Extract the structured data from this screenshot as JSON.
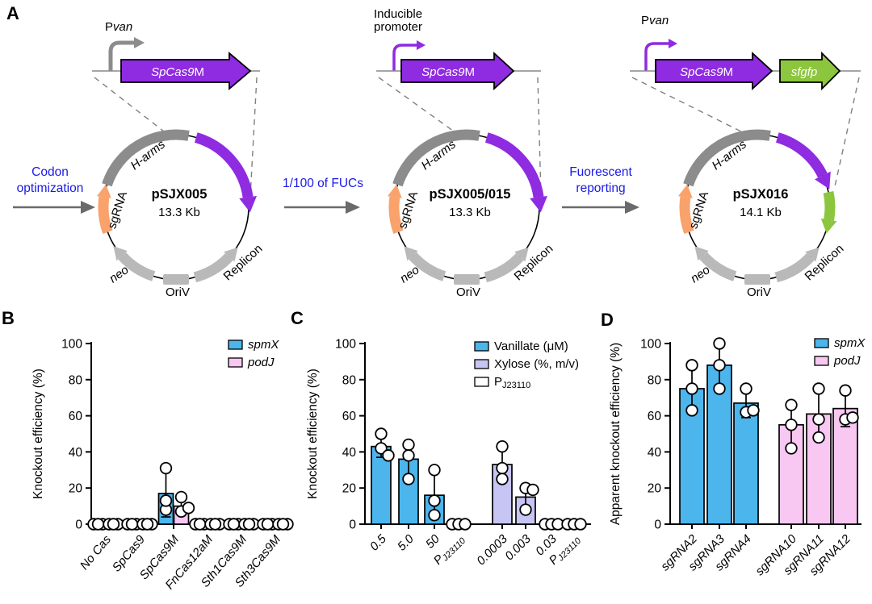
{
  "panel_labels": {
    "a": "A",
    "b": "B",
    "c": "C",
    "d": "D"
  },
  "panelA": {
    "flow_steps": [
      {
        "line1": "Codon",
        "line2": "optimization"
      },
      {
        "line1": "1/100 of FUCs",
        "line2": ""
      },
      {
        "line1": "Fuorescent",
        "line2": "reporting"
      }
    ],
    "shared": {
      "sgRNA": "sgRNA",
      "harms": "H-arms",
      "neo": "neo",
      "oriv": "OriV",
      "replicon": "Replicon"
    },
    "plasmids": [
      {
        "name": "pSJX005",
        "size": "13.3 Kb",
        "promoter_plain": "P",
        "promoter_italic": "van",
        "promoter_line1": "",
        "promoter_line2": "",
        "gene_italic": "SpCas9",
        "gene_plain": "M",
        "gene2": ""
      },
      {
        "name": "pSJX005/015",
        "size": "13.3 Kb",
        "promoter_plain": "",
        "promoter_italic": "",
        "promoter_line1": "Inducible",
        "promoter_line2": "promoter",
        "gene_italic": "SpCas9",
        "gene_plain": "M",
        "gene2": ""
      },
      {
        "name": "pSJX016",
        "size": "14.1 Kb",
        "promoter_plain": "P",
        "promoter_italic": "van",
        "promoter_line1": "",
        "promoter_line2": "",
        "gene_italic": "SpCas9",
        "gene_plain": "M",
        "gene2": "sfgfp"
      }
    ],
    "colors": {
      "purple": "#8f2be0",
      "green": "#8cc63e",
      "orange": "#f9a26b",
      "dark_gray": "#8c8c8c",
      "light_gray": "#b9b9b9",
      "flow_blue": "#1a1ae6"
    }
  },
  "chart_data": [
    {
      "panel": "B",
      "type": "bar",
      "title": "",
      "ylabel": "Knockout efficiency (%)",
      "ylim": [
        0,
        100
      ],
      "yticks": [
        0,
        20,
        40,
        60,
        80,
        100
      ],
      "legend": [
        {
          "label": "spmX",
          "italic": true,
          "color": "#4cb5ec"
        },
        {
          "label": "podJ",
          "italic": true,
          "color": "#f8c7f2"
        }
      ],
      "categories": [
        {
          "text": "No Cas",
          "italic": true
        },
        {
          "text": "SpCas9",
          "italic": true
        },
        {
          "text": "SpCas9M",
          "italic": true
        },
        {
          "text": "FnCas12aM",
          "italic": true
        },
        {
          "text": "Sth1Cas9M",
          "italic": true
        },
        {
          "text": "Sth3Cas9M",
          "italic": true
        }
      ],
      "groups": [
        [
          {
            "color": "#4cb5ec",
            "value": 0,
            "err": null,
            "points": [
              0,
              0,
              0
            ]
          },
          {
            "color": "#f8c7f2",
            "value": 0,
            "err": null,
            "points": [
              0,
              0,
              0
            ]
          }
        ],
        [
          {
            "color": "#4cb5ec",
            "value": 0,
            "err": null,
            "points": [
              0,
              0,
              0
            ]
          },
          {
            "color": "#f8c7f2",
            "value": 0,
            "err": null,
            "points": [
              0,
              0,
              0
            ]
          }
        ],
        [
          {
            "color": "#4cb5ec",
            "value": 17,
            "err": [
              4,
              30
            ],
            "points": [
              8,
              13,
              31
            ]
          },
          {
            "color": "#f8c7f2",
            "value": 10,
            "err": [
              6,
              15
            ],
            "points": [
              7,
              9,
              15
            ]
          }
        ],
        [
          {
            "color": "#4cb5ec",
            "value": 0,
            "err": null,
            "points": [
              0,
              0,
              0
            ]
          },
          {
            "color": "#f8c7f2",
            "value": 0,
            "err": null,
            "points": [
              0,
              0,
              0
            ]
          }
        ],
        [
          {
            "color": "#4cb5ec",
            "value": 0,
            "err": null,
            "points": [
              0,
              0,
              0
            ]
          },
          {
            "color": "#f8c7f2",
            "value": 0,
            "err": null,
            "points": [
              0,
              0,
              0
            ]
          }
        ],
        [
          {
            "color": "#4cb5ec",
            "value": 0,
            "err": null,
            "points": [
              0,
              0,
              0
            ]
          },
          {
            "color": "#f8c7f2",
            "value": 0,
            "err": null,
            "points": [
              0,
              0,
              0
            ]
          }
        ]
      ]
    },
    {
      "panel": "C",
      "type": "bar",
      "title": "",
      "ylabel": "Knockout efficiency (%)",
      "ylim": [
        0,
        100
      ],
      "yticks": [
        0,
        20,
        40,
        60,
        80,
        100
      ],
      "legend": [
        {
          "label": "Vanillate (μM)",
          "italic": false,
          "color": "#4cb5ec"
        },
        {
          "label": "Xylose (%, m/v)",
          "italic": false,
          "color": "#c7c5f3"
        },
        {
          "label": "P",
          "sub": "J23110",
          "italic": false,
          "color": "#ffffff"
        }
      ],
      "categories": [
        {
          "text": "0.5",
          "italic": true
        },
        {
          "text": "5.0",
          "italic": true
        },
        {
          "text": "50",
          "italic": true
        },
        {
          "text": "P",
          "sub": "J23110",
          "italic": true
        },
        {
          "text": "0.0003",
          "italic": true
        },
        {
          "text": "0.003",
          "italic": true
        },
        {
          "text": "0.03",
          "italic": true
        },
        {
          "text": "P",
          "sub": "J23110",
          "italic": true
        }
      ],
      "groups": [
        [
          {
            "color": "#4cb5ec",
            "value": 43,
            "err": [
              37,
              49
            ],
            "points": [
              42,
              38,
              50
            ]
          }
        ],
        [
          {
            "color": "#4cb5ec",
            "value": 36,
            "err": [
              26,
              45
            ],
            "points": [
              44,
              38,
              25
            ]
          }
        ],
        [
          {
            "color": "#4cb5ec",
            "value": 16,
            "err": [
              3,
              29
            ],
            "points": [
              13,
              30,
              5
            ]
          }
        ],
        [
          {
            "color": "#ffffff",
            "value": 0,
            "err": null,
            "points": [
              0,
              0,
              0
            ]
          }
        ],
        [
          {
            "color": "#c7c5f3",
            "value": 33,
            "err": [
              24,
              42
            ],
            "points": [
              31,
              25,
              43
            ]
          }
        ],
        [
          {
            "color": "#c7c5f3",
            "value": 15,
            "err": [
              9,
              22
            ],
            "points": [
              20,
              19,
              8
            ]
          }
        ],
        [
          {
            "color": "#c7c5f3",
            "value": 0,
            "err": null,
            "points": [
              0,
              0,
              0
            ]
          }
        ],
        [
          {
            "color": "#ffffff",
            "value": 0,
            "err": null,
            "points": [
              0,
              0,
              0
            ]
          }
        ]
      ]
    },
    {
      "panel": "D",
      "type": "bar",
      "title": "",
      "ylabel": "Apparent knockout efficiency (%)",
      "ylim": [
        0,
        100
      ],
      "yticks": [
        0,
        20,
        40,
        60,
        80,
        100
      ],
      "legend": [
        {
          "label": "spmX",
          "italic": true,
          "color": "#4cb5ec"
        },
        {
          "label": "podJ",
          "italic": true,
          "color": "#f8c7f2"
        }
      ],
      "categories": [
        {
          "text": "sgRNA2",
          "italic": true
        },
        {
          "text": "sgRNA3",
          "italic": true
        },
        {
          "text": "sgRNA4",
          "italic": true
        },
        {
          "text": "sgRNA10",
          "italic": true
        },
        {
          "text": "sgRNA11",
          "italic": true
        },
        {
          "text": "sgRNA12",
          "italic": true
        }
      ],
      "groups": [
        [
          {
            "color": "#4cb5ec",
            "value": 75,
            "err": [
              62,
              88
            ],
            "points": [
              63,
              75,
              88
            ]
          }
        ],
        [
          {
            "color": "#4cb5ec",
            "value": 88,
            "err": [
              75,
              100
            ],
            "points": [
              75,
              88,
              100
            ]
          }
        ],
        [
          {
            "color": "#4cb5ec",
            "value": 67,
            "err": [
              59,
              74
            ],
            "points": [
              62,
              63,
              75
            ]
          }
        ],
        [
          {
            "color": "#f8c7f2",
            "value": 55,
            "err": [
              42,
              66
            ],
            "points": [
              42,
              55,
              66
            ]
          }
        ],
        [
          {
            "color": "#f8c7f2",
            "value": 61,
            "err": [
              47,
              74
            ],
            "points": [
              48,
              58,
              75
            ]
          }
        ],
        [
          {
            "color": "#f8c7f2",
            "value": 64,
            "err": [
              54,
              73
            ],
            "points": [
              58,
              59,
              74
            ]
          }
        ]
      ]
    }
  ]
}
